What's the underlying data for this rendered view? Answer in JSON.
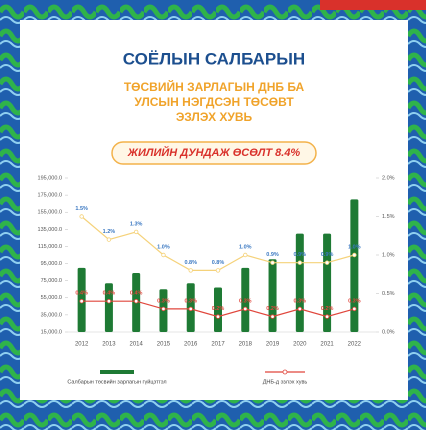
{
  "chart_data": {
    "type": "bar",
    "title": "СОЁЛЫН САЛБАРЫН",
    "subtitle": [
      "ТӨСВИЙН ЗАРЛАГЫН ДНБ БА",
      "УЛСЫН НЭГДСЭН ТӨСӨВТ",
      "ЭЗЛЭХ ХУВЬ"
    ],
    "annotation": "ЖИЛИЙН ДУНДАЖ ӨСӨЛТ 8.4%",
    "categories": [
      "2012",
      "2013",
      "2014",
      "2015",
      "2016",
      "2017",
      "2018",
      "2019",
      "2020",
      "2021",
      "2022"
    ],
    "series": [
      {
        "name": "Салбарын төсвийн зарлагын гүйцэтгэл",
        "type": "bar",
        "axis": "y",
        "color": "#1e7a34",
        "values": [
          90000,
          72000,
          84000,
          65000,
          72000,
          67000,
          90000,
          100000,
          130000,
          130000,
          170000
        ]
      },
      {
        "type": "line",
        "axis": "y2",
        "color": "#f5d27a",
        "label_color": "#3a78c2",
        "values": [
          1.5,
          1.2,
          1.3,
          1.0,
          0.8,
          0.8,
          1.0,
          0.9,
          0.9,
          0.9,
          1.0
        ],
        "value_labels": [
          "1.5%",
          "1.2%",
          "1.3%",
          "1.0%",
          "0.8%",
          "0.8%",
          "1.0%",
          "0.9%",
          "0.9%",
          "0.9%",
          "1.0%"
        ]
      },
      {
        "name": "ДНБ-д эзлэх хувь",
        "type": "line",
        "axis": "y2",
        "color": "#e0463c",
        "label_color": "#e0463c",
        "values": [
          0.4,
          0.4,
          0.4,
          0.3,
          0.3,
          0.2,
          0.3,
          0.2,
          0.3,
          0.2,
          0.3
        ],
        "value_labels": [
          "0.4%",
          "0.4%",
          "0.4%",
          "0.3%",
          "0.3%",
          "0.2%",
          "0.3%",
          "0.2%",
          "0.3%",
          "0.2%",
          "0.3%"
        ]
      }
    ],
    "ylim": [
      15000,
      195000
    ],
    "yticks": [
      {
        "value": 15000,
        "label": "15,000.0"
      },
      {
        "value": 35000,
        "label": "35,000.0"
      },
      {
        "value": 55000,
        "label": "55,000.0"
      },
      {
        "value": 75000,
        "label": "75,000.0"
      },
      {
        "value": 95000,
        "label": "95,000.0"
      },
      {
        "value": 115000,
        "label": "115,000.0"
      },
      {
        "value": 135000,
        "label": "135,000.0"
      },
      {
        "value": 155000,
        "label": "155,000.0"
      },
      {
        "value": 175000,
        "label": "175,000.0"
      },
      {
        "value": 195000,
        "label": "195,000.0"
      }
    ],
    "y2lim": [
      0,
      2.0
    ],
    "y2ticks": [
      {
        "value": 0,
        "label": "0.0%"
      },
      {
        "value": 0.5,
        "label": "0.5%"
      },
      {
        "value": 1.0,
        "label": "1.0%"
      },
      {
        "value": 1.5,
        "label": "1.5%"
      },
      {
        "value": 2.0,
        "label": "2.0%"
      }
    ]
  }
}
